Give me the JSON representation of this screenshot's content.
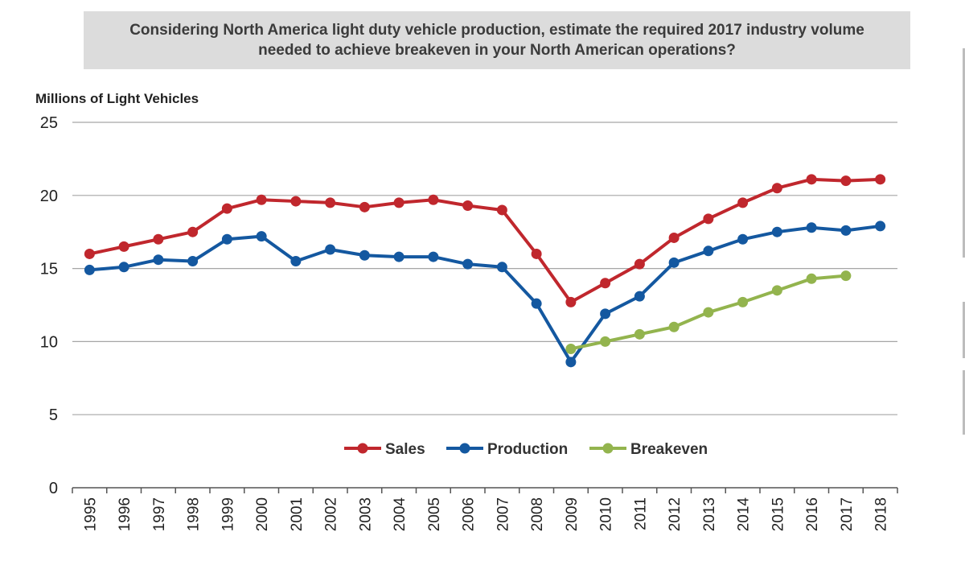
{
  "chart_data": {
    "type": "line",
    "title": "Considering North America light duty vehicle production, estimate the required 2017 industry volume needed to achieve breakeven in your North American operations?",
    "ylabel": "Millions of Light Vehicles",
    "xlabel": "",
    "ylim": [
      0,
      25
    ],
    "yticks": [
      "0",
      "5",
      "10",
      "15",
      "20",
      "25"
    ],
    "grid": true,
    "legend_position": "center",
    "categories": [
      "1995",
      "1996",
      "1997",
      "1998",
      "1999",
      "2000",
      "2001",
      "2002",
      "2003",
      "2004",
      "2005",
      "2006",
      "2007",
      "2008",
      "2009",
      "2010",
      "2011",
      "2012",
      "2013",
      "2014",
      "2015",
      "2016",
      "2017",
      "2018"
    ],
    "series": [
      {
        "name": "Sales",
        "color": "#c0272d",
        "values": [
          16.0,
          16.5,
          17.0,
          17.5,
          19.1,
          19.7,
          19.6,
          19.5,
          19.2,
          19.5,
          19.7,
          19.3,
          19.0,
          16.0,
          12.7,
          14.0,
          15.3,
          17.1,
          18.4,
          19.5,
          20.5,
          21.1,
          21.0,
          21.1
        ]
      },
      {
        "name": "Production",
        "color": "#1458a0",
        "values": [
          14.9,
          15.1,
          15.6,
          15.5,
          17.0,
          17.2,
          15.5,
          16.3,
          15.9,
          15.8,
          15.8,
          15.3,
          15.1,
          12.6,
          8.6,
          11.9,
          13.1,
          15.4,
          16.2,
          17.0,
          17.5,
          17.8,
          17.6,
          17.9
        ]
      },
      {
        "name": "Breakeven",
        "color": "#93b44e",
        "values": [
          null,
          null,
          null,
          null,
          null,
          null,
          null,
          null,
          null,
          null,
          null,
          null,
          null,
          null,
          9.5,
          10.0,
          10.5,
          11.0,
          12.0,
          12.7,
          13.5,
          14.3,
          14.5,
          null
        ]
      }
    ]
  }
}
